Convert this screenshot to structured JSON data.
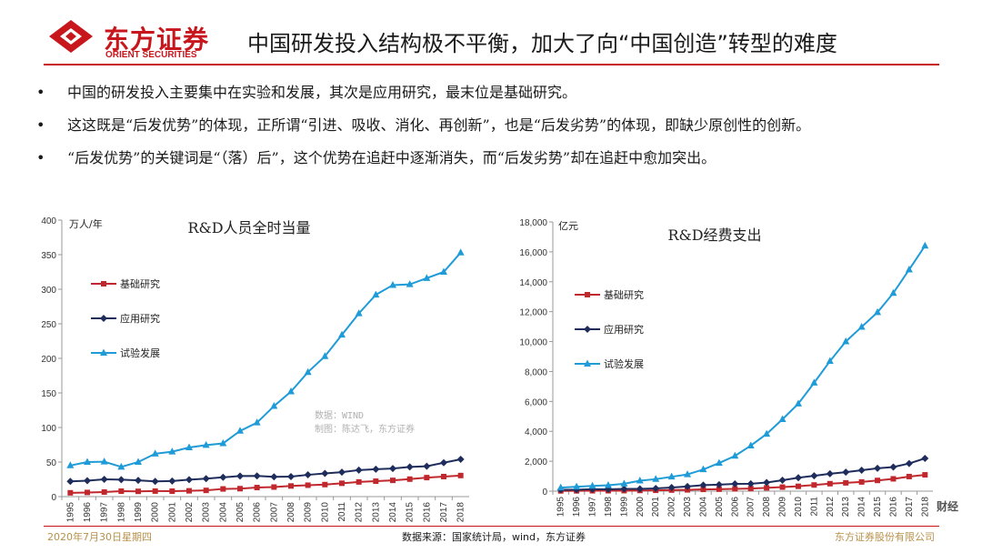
{
  "header": {
    "logo_cn": "东方证券",
    "logo_en": "ORIENT SECURITIES",
    "title": "中国研发投入结构极不平衡，加大了向“中国创造”转型的难度",
    "brand_color": "#c8161d"
  },
  "bullets": [
    "中国的研发投入主要集中在实验和发展，其次是应用研究，最末位是基础研究。",
    "这这既是“后发优势”的体现，正所谓“引进、吸收、消化、再创新”，也是“后发劣势”的体现，即缺少原创性的创新。",
    "“后发优势”的关键词是“（落）后”，这个优势在追赶中逐渐消失，而“后发劣势”却在追赶中愈加突出。"
  ],
  "footer": {
    "date": "2020年7月30日星期四",
    "source": "数据来源：国家统计局，wind，东方证券",
    "company": "东方证券股份有限公司",
    "watermark": "财经"
  },
  "chart_data": [
    {
      "type": "line",
      "title": "R&D人员全时当量",
      "ylabel": "万人/年",
      "xlabel": "",
      "ylim": [
        0,
        400
      ],
      "yticks": [
        0,
        50,
        100,
        150,
        200,
        250,
        300,
        350,
        400
      ],
      "ytick_labels": [
        "0",
        "50",
        "100",
        "150",
        "200",
        "250",
        "300",
        "350",
        "400"
      ],
      "categories": [
        "1995",
        "1996",
        "1997",
        "1998",
        "1999",
        "2000",
        "2001",
        "2002",
        "2003",
        "2004",
        "2005",
        "2006",
        "2007",
        "2008",
        "2009",
        "2010",
        "2011",
        "2012",
        "2013",
        "2014",
        "2015",
        "2016",
        "2017",
        "2018"
      ],
      "series": [
        {
          "name": "基础研究",
          "color": "#c0282d",
          "marker": "square",
          "values": [
            5.5,
            6,
            6.6,
            7.9,
            7.6,
            8,
            7.9,
            8.4,
            9,
            11.1,
            11.5,
            13.1,
            13.8,
            15.4,
            16.5,
            17.4,
            19.3,
            21.2,
            22.3,
            23.5,
            25.3,
            27.5,
            29,
            30.5
          ]
        },
        {
          "name": "应用研究",
          "color": "#1f2d5c",
          "marker": "diamond",
          "values": [
            22,
            23,
            25,
            24.5,
            23.5,
            22,
            22.5,
            24.5,
            26,
            27.9,
            29.7,
            29.9,
            28.6,
            28.9,
            31.5,
            33.6,
            35.3,
            38.4,
            39.6,
            40.7,
            43,
            43.9,
            49,
            54
          ]
        },
        {
          "name": "试验发展",
          "color": "#1f9bd7",
          "marker": "triangle",
          "values": [
            45,
            50,
            50.5,
            43,
            50,
            62,
            65,
            71,
            74.5,
            77,
            95,
            107,
            131,
            152,
            180,
            203,
            234,
            265,
            292,
            306,
            307,
            316,
            325,
            353
          ]
        }
      ],
      "legend_position": "left",
      "annotations": [
        "数据：WIND",
        "制图：陈达飞，东方证券"
      ]
    },
    {
      "type": "line",
      "title": "R&D经费支出",
      "ylabel": "亿元",
      "xlabel": "",
      "ylim": [
        0,
        18000
      ],
      "yticks": [
        0,
        2000,
        4000,
        6000,
        8000,
        10000,
        12000,
        14000,
        16000,
        18000
      ],
      "ytick_labels": [
        "0",
        "2,000",
        "4,000",
        "6,000",
        "8,000",
        "10,000",
        "12,000",
        "14,000",
        "16,000",
        "18,000"
      ],
      "categories": [
        "1995",
        "1996",
        "1997",
        "1998",
        "1999",
        "2000",
        "2001",
        "2002",
        "2003",
        "2004",
        "2005",
        "2006",
        "2007",
        "2008",
        "2009",
        "2010",
        "2011",
        "2012",
        "2013",
        "2014",
        "2015",
        "2016",
        "2017",
        "2018"
      ],
      "series": [
        {
          "name": "基础研究",
          "color": "#c0282d",
          "marker": "square",
          "values": [
            18,
            20,
            27,
            29,
            34,
            46,
            55,
            73,
            87,
            117,
            131,
            155,
            174,
            220,
            270,
            324,
            412,
            499,
            555,
            614,
            716,
            823,
            976,
            1090
          ]
        },
        {
          "name": "应用研究",
          "color": "#1f2d5c",
          "marker": "diamond",
          "values": [
            92,
            100,
            133,
            124,
            151,
            152,
            185,
            246,
            311,
            400,
            433,
            489,
            493,
            575,
            730,
            894,
            1028,
            1162,
            1270,
            1398,
            1529,
            1611,
            1849,
            2191
          ]
        },
        {
          "name": "试验发展",
          "color": "#1f9bd7",
          "marker": "triangle",
          "values": [
            239,
            295,
            349,
            398,
            494,
            698,
            802,
            962,
            1118,
            1449,
            1880,
            2356,
            3043,
            3825,
            4804,
            5845,
            7242,
            8693,
            10004,
            10980,
            11955,
            13244,
            14808,
            16400
          ]
        }
      ],
      "legend_position": "left"
    }
  ]
}
